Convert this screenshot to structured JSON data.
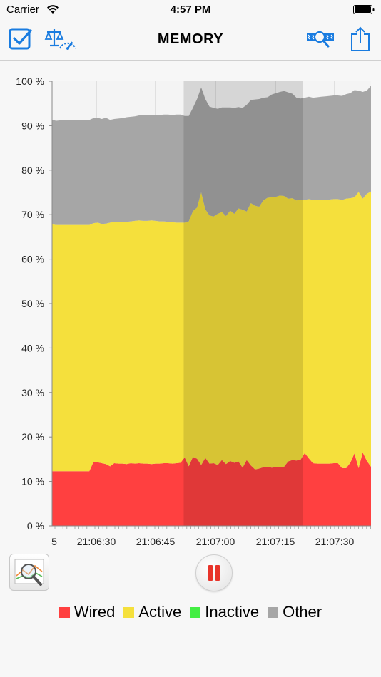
{
  "status_bar": {
    "carrier": "Carrier",
    "time": "4:57 PM"
  },
  "nav": {
    "title": "MEMORY",
    "left_icons": [
      "checkbox-icon",
      "scale-gauge-icon"
    ],
    "right_icons": [
      "zoom-tape-icon",
      "share-icon"
    ],
    "accent_color": "#1a7ce0"
  },
  "chart_data": {
    "type": "area",
    "stacked": true,
    "x_tick_labels": [
      "5",
      "21:06:30",
      "21:06:45",
      "21:07:00",
      "21:07:15",
      "21:07:30"
    ],
    "y_tick_labels": [
      "0 %",
      "10 %",
      "20 %",
      "30 %",
      "40 %",
      "50 %",
      "60 %",
      "70 %",
      "80 %",
      "90 %",
      "100 %"
    ],
    "ylim": [
      0,
      100
    ],
    "grid": true,
    "legend_position": "bottom",
    "highlight_range": [
      "21:06:52",
      "21:07:22"
    ],
    "series": [
      {
        "name": "Wired",
        "color": "#ff4040",
        "values": [
          12.3,
          12.3,
          12.3,
          12.3,
          12.3,
          12.3,
          12.3,
          12.3,
          12.3,
          12.3,
          14.4,
          14.3,
          14.1,
          13.9,
          13.4,
          14.1,
          14.0,
          14.0,
          13.9,
          14.1,
          14.0,
          14.1,
          14.0,
          14.0,
          13.9,
          14.0,
          14.0,
          14.1,
          14.1,
          14.0,
          14.1,
          14.2,
          15.4,
          13.4,
          15.5,
          15.1,
          13.7,
          15.3,
          14.0,
          14.1,
          13.7,
          14.8,
          13.9,
          14.6,
          14.2,
          14.5,
          13.1,
          14.8,
          13.6,
          12.7,
          12.9,
          13.2,
          13.3,
          13.1,
          13.2,
          13.3,
          13.3,
          14.5,
          14.8,
          14.7,
          14.9,
          16.4,
          15.2,
          14.1,
          14.0,
          14.0,
          14.0,
          14.0,
          14.1,
          14.1,
          13.0,
          13.0,
          14.2,
          16.3,
          13.0,
          16.5,
          14.6,
          13.3
        ]
      },
      {
        "name": "Active",
        "color": "#f5e03c",
        "values": [
          55.5,
          55.4,
          55.4,
          55.4,
          55.4,
          55.4,
          55.4,
          55.4,
          55.4,
          55.4,
          53.7,
          53.9,
          53.8,
          54.1,
          54.8,
          54.3,
          54.3,
          54.4,
          54.5,
          54.4,
          54.6,
          54.6,
          54.6,
          54.6,
          54.8,
          54.6,
          54.5,
          54.4,
          54.3,
          54.3,
          54.1,
          54.0,
          52.8,
          55.1,
          55.3,
          56.5,
          61.3,
          55.9,
          55.8,
          55.5,
          56.5,
          55.8,
          55.8,
          56.3,
          56.0,
          56.9,
          58.0,
          55.9,
          59.0,
          59.3,
          58.9,
          60.0,
          60.5,
          60.8,
          60.8,
          61.0,
          60.9,
          59.1,
          58.9,
          58.5,
          58.5,
          56.9,
          58.3,
          59.2,
          59.3,
          59.4,
          59.4,
          59.4,
          59.4,
          59.4,
          60.3,
          60.6,
          59.5,
          57.6,
          62.1,
          57.1,
          60.1,
          61.9
        ]
      },
      {
        "name": "Inactive",
        "color": "#44ee44",
        "values": [
          0,
          0,
          0,
          0,
          0,
          0,
          0,
          0,
          0,
          0,
          0,
          0,
          0,
          0,
          0,
          0,
          0,
          0,
          0,
          0,
          0,
          0,
          0,
          0,
          0,
          0,
          0,
          0,
          0,
          0,
          0,
          0,
          0,
          0,
          0,
          0,
          0,
          0,
          0,
          0,
          0,
          0,
          0,
          0,
          0,
          0,
          0,
          0,
          0,
          0,
          0,
          0,
          0,
          0,
          0,
          0,
          0,
          0,
          0,
          0,
          0,
          0,
          0,
          0,
          0,
          0,
          0,
          0,
          0,
          0,
          0,
          0,
          0,
          0,
          0,
          0,
          0,
          0
        ]
      },
      {
        "name": "Other",
        "color": "#a6a6a6",
        "values": [
          23.5,
          23.4,
          23.5,
          23.5,
          23.5,
          23.6,
          23.6,
          23.6,
          23.6,
          23.6,
          23.6,
          23.6,
          23.6,
          23.8,
          23.1,
          23.1,
          23.3,
          23.3,
          23.5,
          23.5,
          23.5,
          23.6,
          23.7,
          23.7,
          23.7,
          23.8,
          23.9,
          24.0,
          24.1,
          24.1,
          24.3,
          24.3,
          24.0,
          23.7,
          23.2,
          24.4,
          23.6,
          24.8,
          24.5,
          24.4,
          23.6,
          23.5,
          24.4,
          23.2,
          23.8,
          22.8,
          22.9,
          24.0,
          23.2,
          23.9,
          24.2,
          23.1,
          22.6,
          23.1,
          23.3,
          23.3,
          23.6,
          23.9,
          23.5,
          23.1,
          22.7,
          23.0,
          23.0,
          23.0,
          23.1,
          23.1,
          23.2,
          23.3,
          23.3,
          23.3,
          23.4,
          23.5,
          23.6,
          24.1,
          22.8,
          24.0,
          23.2,
          23.8
        ]
      }
    ]
  },
  "controls": {
    "zoom_icon": "chart-magnifier-icon",
    "pause_icon": "pause-icon"
  },
  "legend": [
    {
      "label": "Wired",
      "color": "#ff4040"
    },
    {
      "label": "Active",
      "color": "#f5e03c"
    },
    {
      "label": "Inactive",
      "color": "#44ee44"
    },
    {
      "label": "Other",
      "color": "#a6a6a6"
    }
  ]
}
